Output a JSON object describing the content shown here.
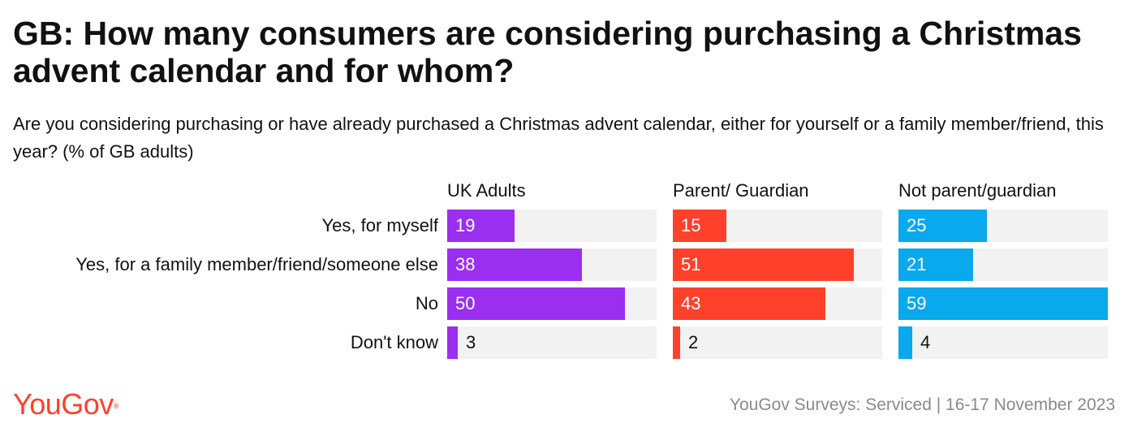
{
  "header": {
    "title": "GB: How many consumers are considering purchasing a Christmas advent calendar and for whom?",
    "subtitle": "Are you considering purchasing or have already purchased a Christmas advent calendar, either for yourself or a family member/friend, this year? (% of GB adults)"
  },
  "chart_data": {
    "type": "bar",
    "orientation": "horizontal",
    "title": "GB: How many consumers are considering purchasing a Christmas advent calendar and for whom?",
    "subtitle": "Are you considering purchasing or have already purchased a Christmas advent calendar, either for yourself or a family member/friend, this year? (% of GB adults)",
    "categories": [
      "Yes, for myself",
      "Yes, for a family member/friend/someone else",
      "No",
      "Don't know"
    ],
    "xlim": [
      0,
      59
    ],
    "series": [
      {
        "name": "UK Adults",
        "color": "#9b2ff0",
        "values": [
          19,
          38,
          50,
          3
        ]
      },
      {
        "name": "Parent/ Guardian",
        "color": "#ff412c",
        "values": [
          15,
          51,
          43,
          2
        ]
      },
      {
        "name": "Not parent/guardian",
        "color": "#0aa8ec",
        "values": [
          25,
          21,
          59,
          4
        ]
      }
    ],
    "track_color": "#f2f2f2",
    "unit": "%"
  },
  "footer": {
    "logo_text": "YouGov",
    "logo_mark": "®",
    "logo_color": "#ff412c",
    "source": "YouGov Surveys: Serviced | 16-17 November 2023"
  }
}
